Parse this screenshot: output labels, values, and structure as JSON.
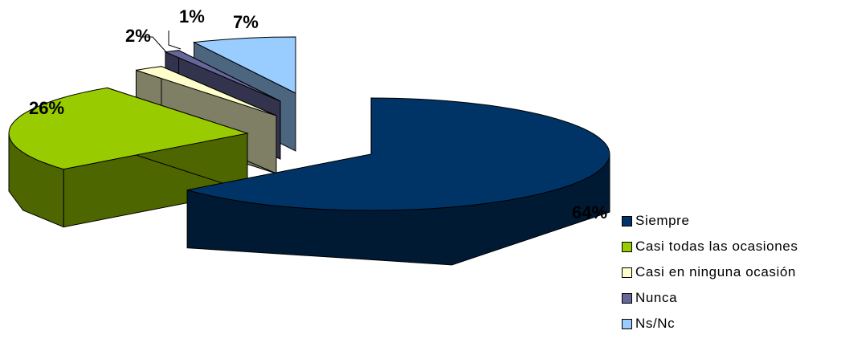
{
  "chart_data": {
    "type": "pie",
    "title": "",
    "three_d": true,
    "exploded": true,
    "categories": [
      "Siempre",
      "Casi todas las ocasiones",
      "Casi en ninguna ocasión",
      "Nunca",
      "Ns/Nc"
    ],
    "values": [
      64,
      26,
      2,
      1,
      7
    ],
    "labels": [
      "64%",
      "26%",
      "2%",
      "1%",
      "7%"
    ],
    "colors": [
      "#003366",
      "#99CC00",
      "#FFFFCC",
      "#666699",
      "#99CCFF"
    ],
    "side_colors": [
      "#001a33",
      "#4d6600",
      "#7f7f66",
      "#33334d",
      "#4d6680"
    ],
    "legend_position": "bottom-right"
  }
}
